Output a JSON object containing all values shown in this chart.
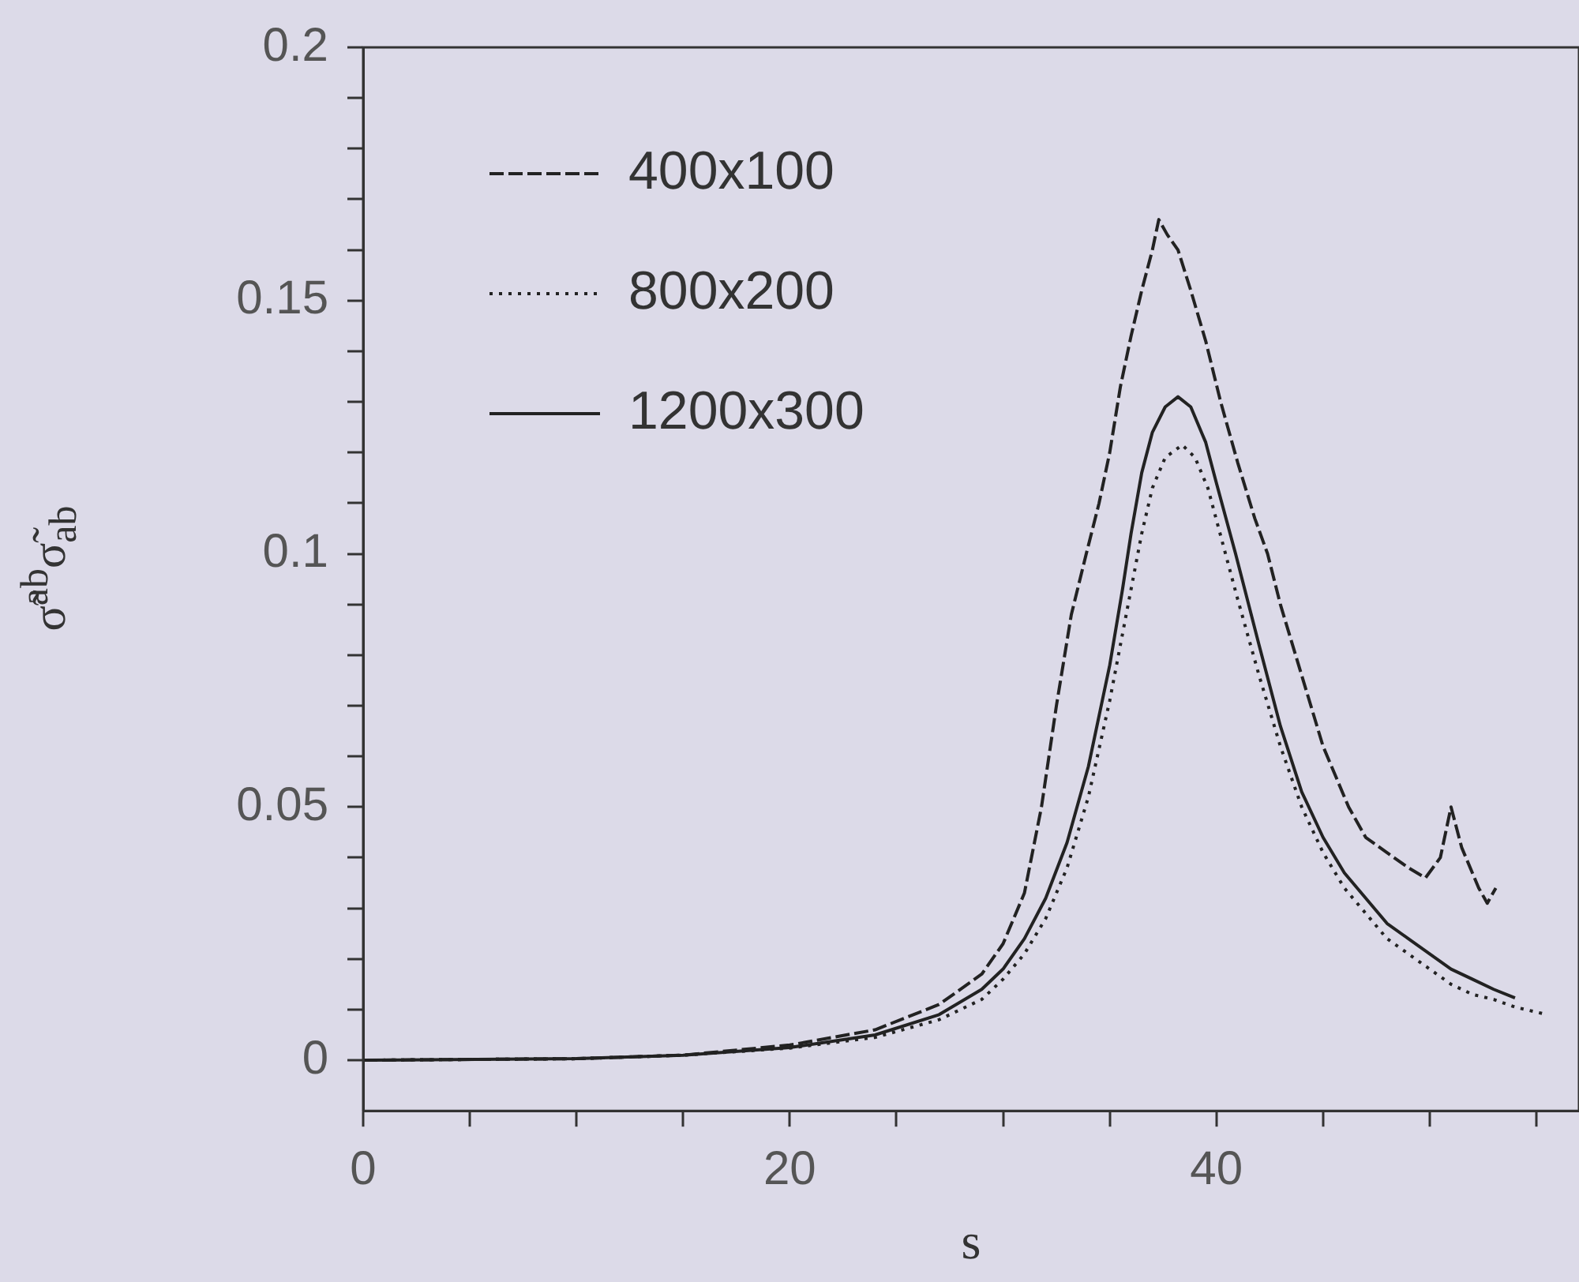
{
  "chart_data": {
    "type": "line",
    "xlabel": "s",
    "ylabel": "σ̃$^{ab}$σ̃$_{ab}$",
    "xlim": [
      0,
      57
    ],
    "ylim": [
      -0.01,
      0.2
    ],
    "xticks": [
      0,
      {
        "value": 5,
        "label": null
      },
      {
        "value": 10,
        "label": null
      },
      {
        "value": 15,
        "label": null
      },
      20,
      {
        "value": 25,
        "label": null
      },
      {
        "value": 30,
        "label": null
      },
      {
        "value": 35,
        "label": null
      },
      40,
      {
        "value": 45,
        "label": null
      },
      {
        "value": 50,
        "label": null
      },
      {
        "value": 55,
        "label": null
      }
    ],
    "yticks": [
      0,
      {
        "value": 0.01,
        "label": null
      },
      {
        "value": 0.02,
        "label": null
      },
      {
        "value": 0.03,
        "label": null
      },
      {
        "value": 0.04,
        "label": null
      },
      0.05,
      {
        "value": 0.06,
        "label": null
      },
      {
        "value": 0.07,
        "label": null
      },
      {
        "value": 0.08,
        "label": null
      },
      {
        "value": 0.09,
        "label": null
      },
      0.1,
      {
        "value": 0.11,
        "label": null
      },
      {
        "value": 0.12,
        "label": null
      },
      {
        "value": 0.13,
        "label": null
      },
      {
        "value": 0.14,
        "label": null
      },
      0.15,
      {
        "value": 0.16,
        "label": null
      },
      {
        "value": 0.17,
        "label": null
      },
      {
        "value": 0.18,
        "label": null
      },
      {
        "value": 0.19,
        "label": null
      },
      0.2
    ],
    "grid": false,
    "legend": "top left",
    "marker": "none",
    "series": [
      {
        "name": "400x100",
        "color": "#222222",
        "line_style": "dashed",
        "x": [
          0,
          10,
          15,
          20,
          24,
          27,
          29,
          30,
          31,
          31.8,
          32.5,
          33.2,
          33.9,
          34.5,
          35,
          35.5,
          36,
          36.5,
          37,
          37.3,
          37.7,
          38.2,
          38.8,
          39.5,
          40.2,
          41,
          41.8,
          42.4,
          43,
          44,
          45,
          46.2,
          47,
          48,
          49,
          49.8,
          50.5,
          51,
          51.5,
          52.3,
          52.7,
          53.1
        ],
        "values": [
          0,
          0.0003,
          0.001,
          0.003,
          0.006,
          0.011,
          0.017,
          0.023,
          0.033,
          0.05,
          0.07,
          0.088,
          0.1,
          0.11,
          0.12,
          0.133,
          0.143,
          0.152,
          0.16,
          0.166,
          0.163,
          0.16,
          0.152,
          0.142,
          0.13,
          0.118,
          0.107,
          0.1,
          0.09,
          0.076,
          0.062,
          0.05,
          0.044,
          0.041,
          0.038,
          0.036,
          0.04,
          0.05,
          0.042,
          0.034,
          0.031,
          0.034
        ]
      },
      {
        "name": "800x200",
        "color": "#222222",
        "line_style": "dotted",
        "x": [
          0,
          10,
          15,
          20,
          24,
          27,
          29,
          30,
          31,
          32,
          33,
          34,
          35,
          36,
          36.5,
          37,
          37.6,
          38.4,
          39,
          39.6,
          40.3,
          41,
          42,
          43,
          44,
          45,
          46,
          47,
          48,
          49,
          50,
          51,
          52,
          53,
          54,
          55.3
        ],
        "values": [
          0,
          0.0003,
          0.001,
          0.0024,
          0.0045,
          0.008,
          0.012,
          0.016,
          0.021,
          0.028,
          0.038,
          0.052,
          0.071,
          0.093,
          0.104,
          0.113,
          0.119,
          0.1215,
          0.119,
          0.113,
          0.102,
          0.091,
          0.076,
          0.062,
          0.05,
          0.041,
          0.034,
          0.029,
          0.024,
          0.021,
          0.018,
          0.015,
          0.013,
          0.012,
          0.0105,
          0.0092
        ]
      },
      {
        "name": "1200x300",
        "color": "#222222",
        "line_style": "solid",
        "x": [
          0,
          10,
          15,
          20,
          24,
          27,
          29,
          30,
          31,
          32,
          33,
          34,
          35,
          35.6,
          36,
          36.5,
          37,
          37.6,
          38.2,
          38.8,
          39.5,
          40,
          40.9,
          42,
          43,
          44,
          45,
          46,
          47,
          48,
          49,
          50,
          51,
          52,
          53,
          54
        ],
        "values": [
          0,
          0.0003,
          0.001,
          0.0025,
          0.005,
          0.009,
          0.014,
          0.018,
          0.024,
          0.032,
          0.043,
          0.058,
          0.078,
          0.093,
          0.104,
          0.116,
          0.124,
          0.129,
          0.131,
          0.129,
          0.122,
          0.114,
          0.1,
          0.082,
          0.066,
          0.053,
          0.044,
          0.037,
          0.032,
          0.027,
          0.024,
          0.021,
          0.018,
          0.016,
          0.014,
          0.0123
        ]
      }
    ]
  }
}
